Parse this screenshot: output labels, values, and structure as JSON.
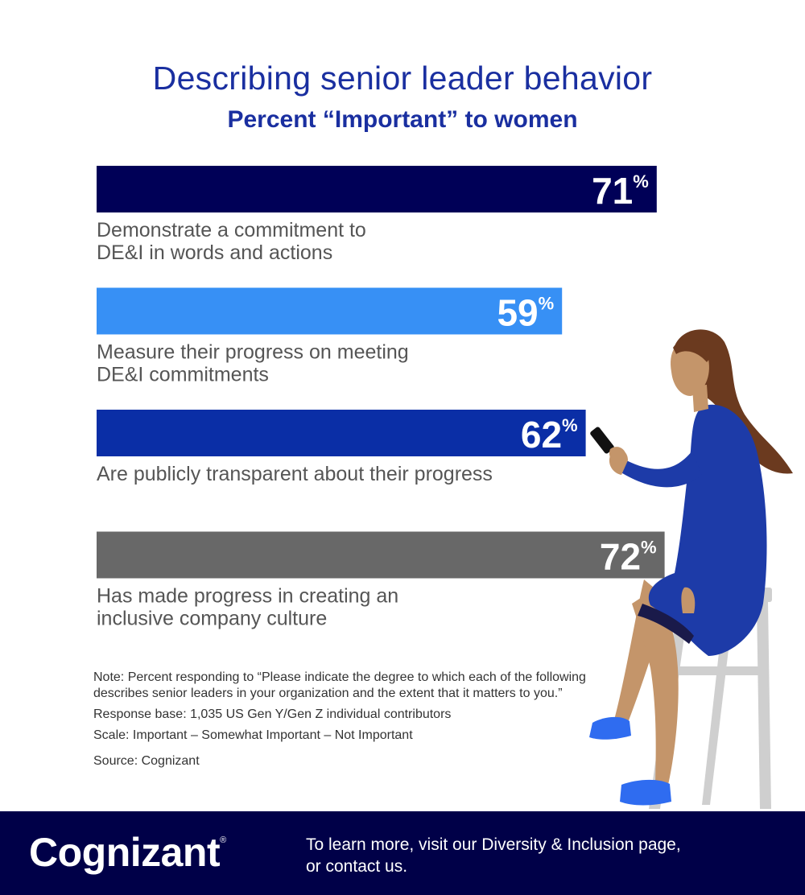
{
  "header": {
    "title": "Describing senior leader behavior",
    "subtitle": "Percent “Important” to women"
  },
  "chart_data": {
    "type": "bar",
    "title": "Describing senior leader behavior",
    "subtitle": "Percent “Important” to women",
    "orientation": "horizontal",
    "categories": [
      [
        "Demonstrate a commitment to",
        "DE&I in words and actions"
      ],
      [
        "Measure their progress on meeting",
        "DE&I commitments"
      ],
      [
        "Are publicly transparent about their progress"
      ],
      [
        "Has made progress in creating an",
        "inclusive company culture"
      ]
    ],
    "values": [
      71,
      59,
      62,
      72
    ],
    "value_labels": [
      "71",
      "59",
      "62",
      "72"
    ],
    "value_suffix": "%",
    "colors": [
      "#000057",
      "#3790f5",
      "#0a2ea6",
      "#686868"
    ],
    "xlim": [
      0,
      100
    ],
    "grid": false,
    "legend": "none"
  },
  "notes": {
    "note": "Note: Percent responding to “Please indicate the degree to which each of the following describes senior leaders in your organization and the extent that it matters to you.”",
    "base": "Response base: 1,035 US Gen Y/Gen Z individual contributors",
    "scale": "Scale: Important – Somewhat Important – Not Important",
    "source": "Source: Cognizant"
  },
  "footer": {
    "logo": "Cognizant",
    "logo_mark": "®",
    "cta_line1": "To learn more, visit our Diversity & Inclusion page,",
    "cta_line2": "or contact us."
  },
  "illustration": {
    "icon": "woman-on-stool-with-phone-icon",
    "colors": {
      "dress": "#1d3ba8",
      "skin": "#c4956a",
      "hair": "#6b3a1f",
      "shoes": "#2f6cf0",
      "stool": "#cfcfcf",
      "phone": "#111111"
    }
  }
}
